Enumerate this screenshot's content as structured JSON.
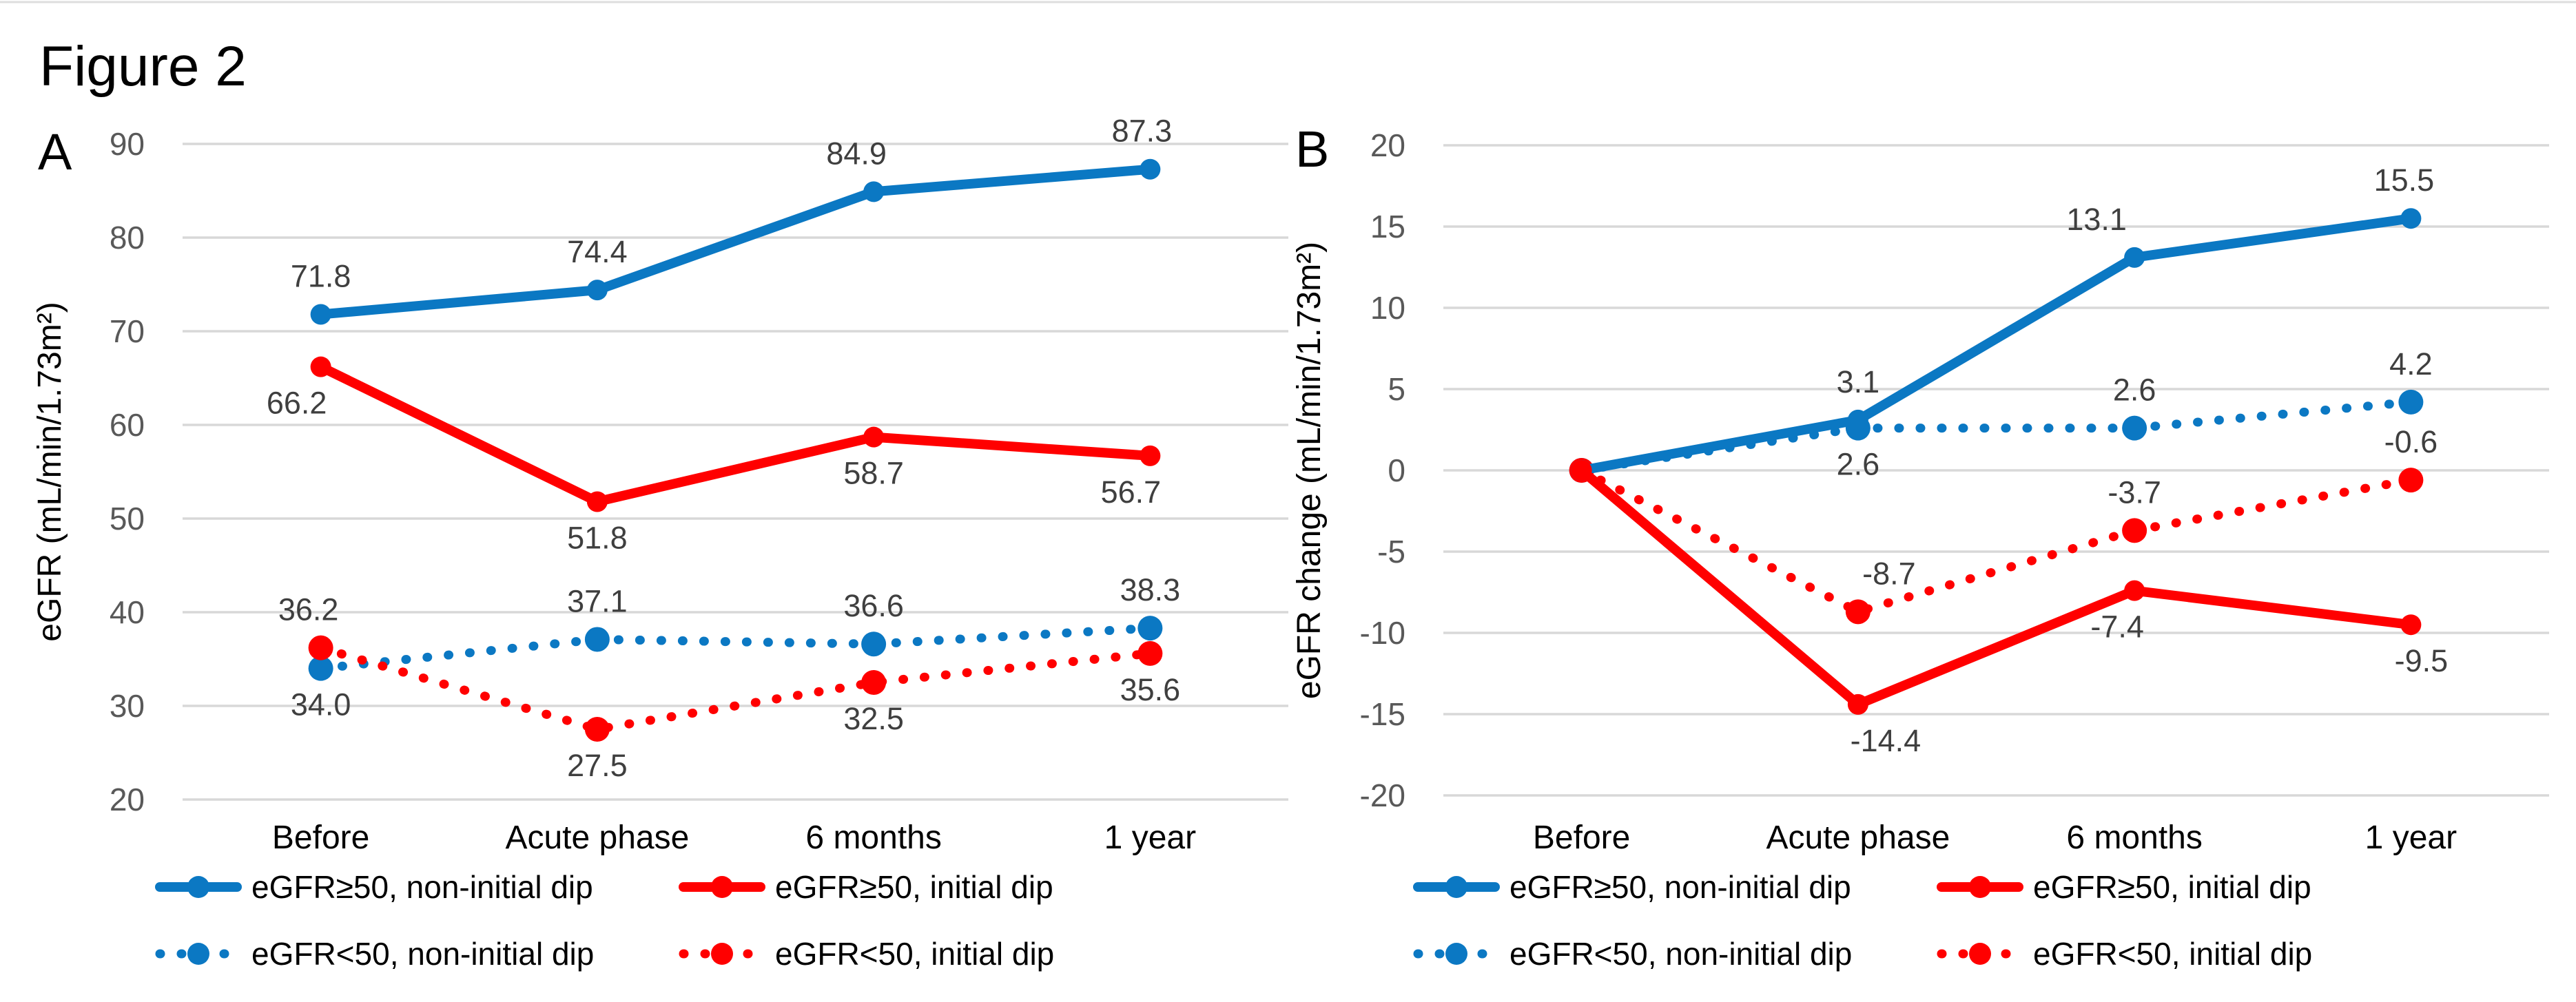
{
  "figure": {
    "title": "Figure 2"
  },
  "colors": {
    "blue": "#0B78C3",
    "red": "#FF0000",
    "gridline": "#D8D8D8",
    "tick_label": "#595959",
    "data_label": "#3F3F3F",
    "axis_text": "#000000"
  },
  "chart_data": [
    {
      "type": "line",
      "panel_label": "A",
      "xlabel": "",
      "ylabel": "eGFR (mL/min/1.73m²)",
      "categories": [
        "Before",
        "Acute phase",
        "6 months",
        "1 year"
      ],
      "ylim": [
        20,
        90
      ],
      "yticks": [
        "90",
        "80",
        "70",
        "60",
        "50",
        "40",
        "30",
        "20"
      ],
      "grid": true,
      "legend_position": "bottom",
      "series": [
        {
          "name": "eGFR≥50, non-initial dip",
          "color": "#0B78C3",
          "style": "solid",
          "values": [
            71.8,
            74.4,
            84.9,
            87.3
          ],
          "data_labels": [
            {
              "text": "71.8",
              "side": "above",
              "dx": 0
            },
            {
              "text": "74.4",
              "side": "above",
              "dx": 0
            },
            {
              "text": "84.9",
              "side": "above",
              "dx": -25
            },
            {
              "text": "87.3",
              "side": "above",
              "dx": -12
            }
          ]
        },
        {
          "name": "eGFR≥50, initial dip",
          "color": "#FF0000",
          "style": "solid",
          "values": [
            66.2,
            51.8,
            58.7,
            56.7
          ],
          "data_labels": [
            {
              "text": "66.2",
              "side": "below",
              "dx": -35
            },
            {
              "text": "51.8",
              "side": "below",
              "dx": 0
            },
            {
              "text": "58.7",
              "side": "below",
              "dx": 0
            },
            {
              "text": "56.7",
              "side": "below",
              "dx": -28
            }
          ]
        },
        {
          "name": "eGFR<50, non-initial dip",
          "color": "#0B78C3",
          "style": "dotted",
          "values": [
            34.0,
            37.1,
            36.6,
            38.3
          ],
          "data_labels": [
            {
              "text": "34.0",
              "side": "below",
              "dx": 0
            },
            {
              "text": "37.1",
              "side": "above",
              "dx": 0
            },
            {
              "text": "36.6",
              "side": "above",
              "dx": 0
            },
            {
              "text": "38.3",
              "side": "above",
              "dx": 0
            }
          ]
        },
        {
          "name": "eGFR<50, initial dip",
          "color": "#FF0000",
          "style": "dotted",
          "values": [
            36.2,
            27.5,
            32.5,
            35.6
          ],
          "data_labels": [
            {
              "text": "36.2",
              "side": "above",
              "dx": -18
            },
            {
              "text": "27.5",
              "side": "below",
              "dx": 0
            },
            {
              "text": "32.5",
              "side": "below",
              "dx": 0
            },
            {
              "text": "35.6",
              "side": "below",
              "dx": 0
            }
          ]
        }
      ]
    },
    {
      "type": "line",
      "panel_label": "B",
      "xlabel": "",
      "ylabel": "eGFR change (mL/min/1.73m²)",
      "categories": [
        "Before",
        "Acute phase",
        "6 months",
        "1 year"
      ],
      "ylim": [
        -20,
        20
      ],
      "yticks": [
        "20",
        "15",
        "10",
        "5",
        "0",
        "-5",
        "-10",
        "-15",
        "-20"
      ],
      "grid": true,
      "legend_position": "bottom",
      "series": [
        {
          "name": "eGFR≥50, non-initial dip",
          "color": "#0B78C3",
          "style": "solid",
          "values": [
            0,
            3.1,
            13.1,
            15.5
          ],
          "data_labels": [
            {
              "text": null,
              "side": "above",
              "dx": 0
            },
            {
              "text": "3.1",
              "side": "above",
              "dx": 0
            },
            {
              "text": "13.1",
              "side": "above",
              "dx": -55
            },
            {
              "text": "15.5",
              "side": "above",
              "dx": -10
            }
          ]
        },
        {
          "name": "eGFR≥50, initial dip",
          "color": "#FF0000",
          "style": "solid",
          "values": [
            0,
            -14.4,
            -7.4,
            -9.5
          ],
          "data_labels": [
            {
              "text": null,
              "side": "above",
              "dx": 0
            },
            {
              "text": "-14.4",
              "side": "below",
              "dx": 40
            },
            {
              "text": "-7.4",
              "side": "below",
              "dx": -25
            },
            {
              "text": "-9.5",
              "side": "below",
              "dx": 15
            }
          ]
        },
        {
          "name": "eGFR<50, non-initial dip",
          "color": "#0B78C3",
          "style": "dotted",
          "values": [
            0,
            2.6,
            2.6,
            4.2
          ],
          "data_labels": [
            {
              "text": null,
              "side": "above",
              "dx": 0
            },
            {
              "text": "2.6",
              "side": "below",
              "dx": 0
            },
            {
              "text": "2.6",
              "side": "above",
              "dx": 0
            },
            {
              "text": "4.2",
              "side": "above",
              "dx": 0
            }
          ]
        },
        {
          "name": "eGFR<50, initial dip",
          "color": "#FF0000",
          "style": "dotted",
          "values": [
            0,
            -8.7,
            -3.7,
            -0.6
          ],
          "data_labels": [
            {
              "text": null,
              "side": "above",
              "dx": 0
            },
            {
              "text": "-8.7",
              "side": "above",
              "dx": 45
            },
            {
              "text": "-3.7",
              "side": "above",
              "dx": 0
            },
            {
              "text": "-0.6",
              "side": "above",
              "dx": 0
            }
          ]
        }
      ]
    }
  ]
}
